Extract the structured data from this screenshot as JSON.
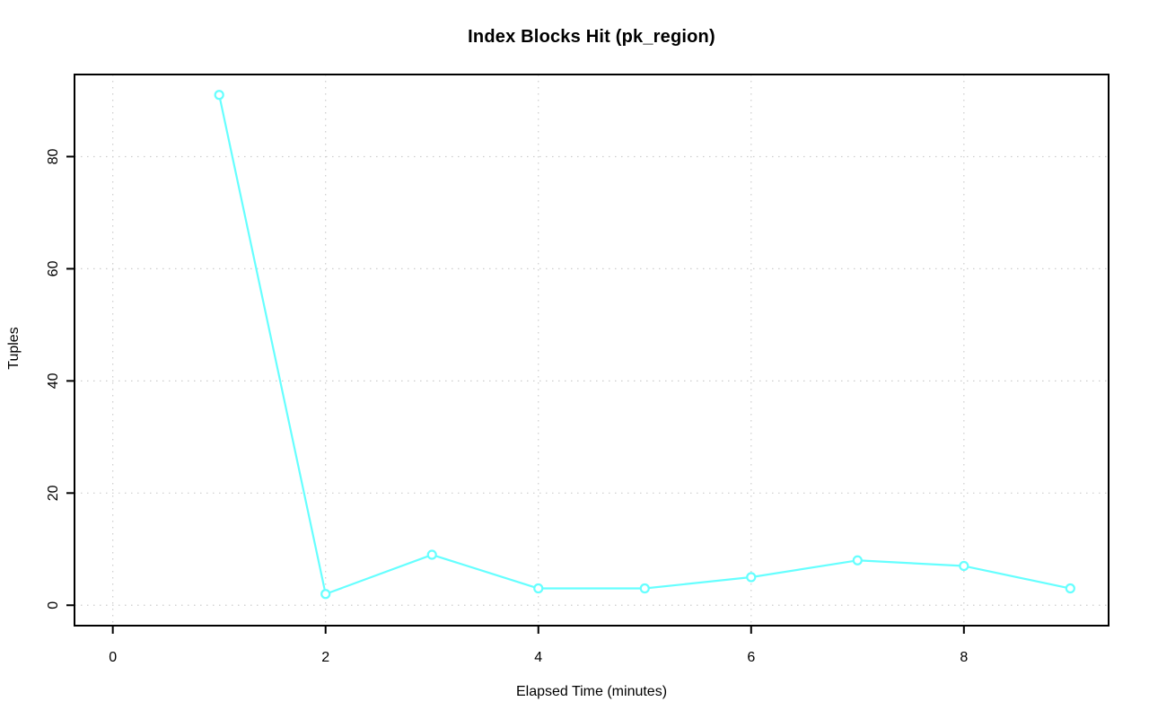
{
  "chart_data": {
    "type": "line",
    "title": "Index Blocks Hit (pk_region)",
    "xlabel": "Elapsed Time (minutes)",
    "ylabel": "Tuples",
    "x": [
      1,
      2,
      3,
      4,
      5,
      6,
      7,
      8,
      9
    ],
    "y": [
      91,
      2,
      9,
      3,
      3,
      5,
      8,
      7,
      3
    ],
    "xticks": [
      0,
      2,
      4,
      6,
      8
    ],
    "yticks": [
      0,
      20,
      40,
      60,
      80
    ],
    "xlim": [
      -0.36,
      9.36
    ],
    "ylim": [
      -3.64,
      94.64
    ],
    "grid": "dotted",
    "legend_position": "none",
    "marker": "open-circle",
    "colors": {
      "line": "#66FFFF",
      "marker_fill": "#FFFFFF",
      "grid": "#CDCDCD",
      "axis": "#000000",
      "text": "#000000",
      "background": "#FFFFFF"
    }
  }
}
